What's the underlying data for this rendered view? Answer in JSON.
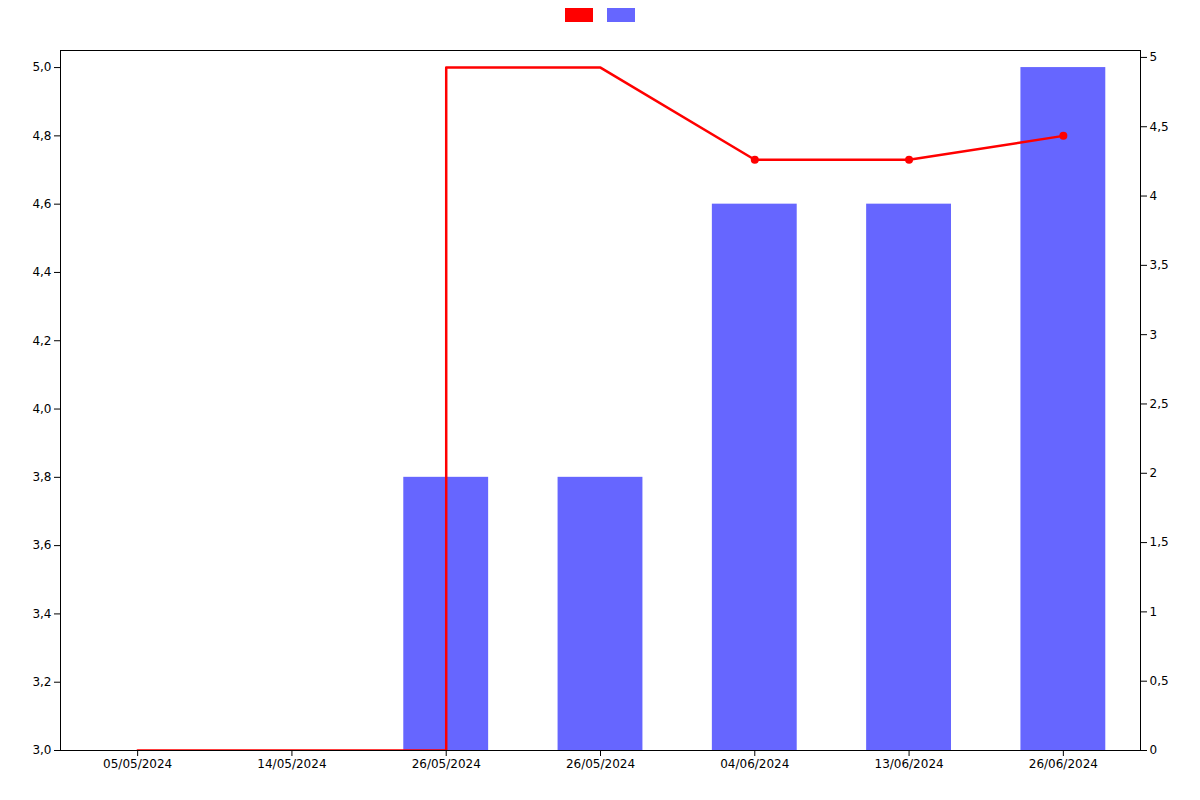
{
  "chart_data": {
    "type": "bar",
    "categories": [
      "05/05/2024",
      "14/05/2024",
      "26/05/2024",
      "26/05/2024",
      "04/06/2024",
      "13/06/2024",
      "26/06/2024"
    ],
    "ylim": [
      3.0,
      5.05
    ],
    "yticks": [
      {
        "value": 3.0,
        "label": "3,0"
      },
      {
        "value": 3.2,
        "label": "3,2"
      },
      {
        "value": 3.4,
        "label": "3,4"
      },
      {
        "value": 3.6,
        "label": "3,6"
      },
      {
        "value": 3.8,
        "label": "3,8"
      },
      {
        "value": 4.0,
        "label": "4,0"
      },
      {
        "value": 4.2,
        "label": "4,2"
      },
      {
        "value": 4.4,
        "label": "4,4"
      },
      {
        "value": 4.6,
        "label": "4,6"
      },
      {
        "value": 4.8,
        "label": "4,8"
      },
      {
        "value": 5.0,
        "label": "5,0"
      }
    ],
    "y2lim": [
      0,
      5.05
    ],
    "y2ticks": [
      0,
      {
        "value": 0.5,
        "label": "0,5"
      },
      1,
      {
        "value": 1.5,
        "label": "1,5"
      },
      2,
      {
        "value": 2.5,
        "label": "2,5"
      },
      3,
      {
        "value": 3.5,
        "label": "3,5"
      },
      4,
      {
        "value": 4.5,
        "label": "4,5"
      },
      5
    ],
    "grid": false,
    "legend": "top",
    "series": [
      {
        "type": "line",
        "color": "#ff0000",
        "x": [
          0,
          1,
          2,
          2,
          3,
          4,
          4,
          5,
          6
        ],
        "values": [
          3.0,
          3.0,
          3.0,
          5.0,
          5.0,
          4.73,
          4.73,
          4.73,
          4.8
        ]
      },
      {
        "type": "bar",
        "color": "#6666ff",
        "values": [
          null,
          null,
          3.8,
          3.8,
          4.6,
          4.6,
          5.0
        ]
      },
      {
        "type": "scatter",
        "color": "#ff0000",
        "marker": "o",
        "x": [
          4,
          5,
          6
        ],
        "values": [
          4.73,
          4.73,
          4.8
        ]
      }
    ]
  }
}
